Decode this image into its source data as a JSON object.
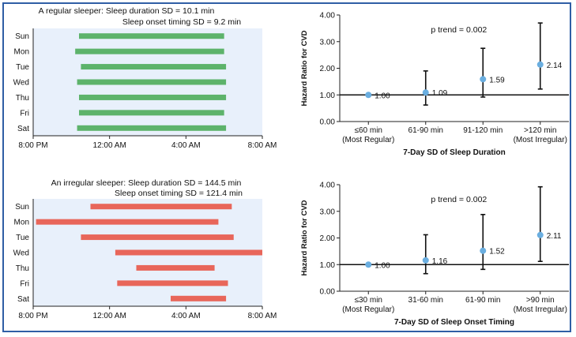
{
  "colors": {
    "border": "#2f5ea5",
    "panel_bg": "#e8f0fb",
    "regular_bar": "#5db36b",
    "irregular_bar": "#e8665a",
    "point": "#6aaee0",
    "errorbar": "#111111"
  },
  "chart_data": [
    {
      "type": "timeline",
      "title_line1": "A regular sleeper: Sleep duration SD = 10.1 min",
      "title_line2": "Sleep onset timing SD = 9.2 min",
      "x_tick_labels": [
        "8:00 PM",
        "12:00 AM",
        "4:00 AM",
        "8:00 AM"
      ],
      "x_range_hours": [
        20,
        32
      ],
      "days": [
        "Sun",
        "Mon",
        "Tue",
        "Wed",
        "Thu",
        "Fri",
        "Sat"
      ],
      "intervals": [
        {
          "day": "Sun",
          "start": 22.4,
          "end": 30.0
        },
        {
          "day": "Mon",
          "start": 22.2,
          "end": 30.0
        },
        {
          "day": "Tue",
          "start": 22.5,
          "end": 30.1
        },
        {
          "day": "Wed",
          "start": 22.3,
          "end": 30.1
        },
        {
          "day": "Thu",
          "start": 22.4,
          "end": 30.1
        },
        {
          "day": "Fri",
          "start": 22.4,
          "end": 30.0
        },
        {
          "day": "Sat",
          "start": 22.3,
          "end": 30.1
        }
      ]
    },
    {
      "type": "scatter",
      "ylabel": "Hazard Ratio for CVD",
      "xlabel": "7-Day SD of Sleep Duration",
      "annotation": "p trend = 0.002",
      "y_ticks": [
        "0.00",
        "1.00",
        "2.00",
        "3.00",
        "4.00"
      ],
      "ylim": [
        0,
        4
      ],
      "reference_line": 1.0,
      "categories": [
        {
          "line1": "≤60 min",
          "line2": "(Most Regular)"
        },
        {
          "line1": "61-90 min",
          "line2": ""
        },
        {
          "line1": "91-120 min",
          "line2": ""
        },
        {
          "line1": ">120 min",
          "line2": "(Most Irregular)"
        }
      ],
      "points": [
        {
          "value": 1.0,
          "label": "1.00",
          "lower": null,
          "upper": null
        },
        {
          "value": 1.09,
          "label": "1.09",
          "lower": 0.62,
          "upper": 1.9
        },
        {
          "value": 1.59,
          "label": "1.59",
          "lower": 0.92,
          "upper": 2.75
        },
        {
          "value": 2.14,
          "label": "2.14",
          "lower": 1.22,
          "upper": 3.7
        }
      ]
    },
    {
      "type": "timeline",
      "title_line1": "An irregular sleeper: Sleep duration SD = 144.5 min",
      "title_line2": "Sleep onset timing SD = 121.4 min",
      "x_tick_labels": [
        "8:00 PM",
        "12:00 AM",
        "4:00 AM",
        "8:00 AM"
      ],
      "x_range_hours": [
        20,
        32
      ],
      "days": [
        "Sun",
        "Mon",
        "Tue",
        "Wed",
        "Thu",
        "Fri",
        "Sat"
      ],
      "intervals": [
        {
          "day": "Sun",
          "start": 23.0,
          "end": 30.4
        },
        {
          "day": "Mon",
          "start": 20.15,
          "end": 29.7
        },
        {
          "day": "Tue",
          "start": 22.5,
          "end": 30.5
        },
        {
          "day": "Wed",
          "start": 24.3,
          "end": 32.0
        },
        {
          "day": "Thu",
          "start": 25.4,
          "end": 29.5
        },
        {
          "day": "Fri",
          "start": 24.4,
          "end": 30.2
        },
        {
          "day": "Sat",
          "start": 27.2,
          "end": 30.1
        }
      ]
    },
    {
      "type": "scatter",
      "ylabel": "Hazard Ratio for CVD",
      "xlabel": "7-Day SD of Sleep Onset Timing",
      "annotation": "p trend = 0.002",
      "y_ticks": [
        "0.00",
        "1.00",
        "2.00",
        "3.00",
        "4.00"
      ],
      "ylim": [
        0,
        4
      ],
      "reference_line": 1.0,
      "categories": [
        {
          "line1": "≤30 min",
          "line2": "(Most Regular)"
        },
        {
          "line1": "31-60 min",
          "line2": ""
        },
        {
          "line1": "61-90 min",
          "line2": ""
        },
        {
          "line1": ">90 min",
          "line2": "(Most Irregular)"
        }
      ],
      "points": [
        {
          "value": 1.0,
          "label": "1.00",
          "lower": null,
          "upper": null
        },
        {
          "value": 1.16,
          "label": "1.16",
          "lower": 0.66,
          "upper": 2.12
        },
        {
          "value": 1.52,
          "label": "1.52",
          "lower": 0.82,
          "upper": 2.88
        },
        {
          "value": 2.11,
          "label": "2.11",
          "lower": 1.12,
          "upper": 3.92
        }
      ]
    }
  ]
}
